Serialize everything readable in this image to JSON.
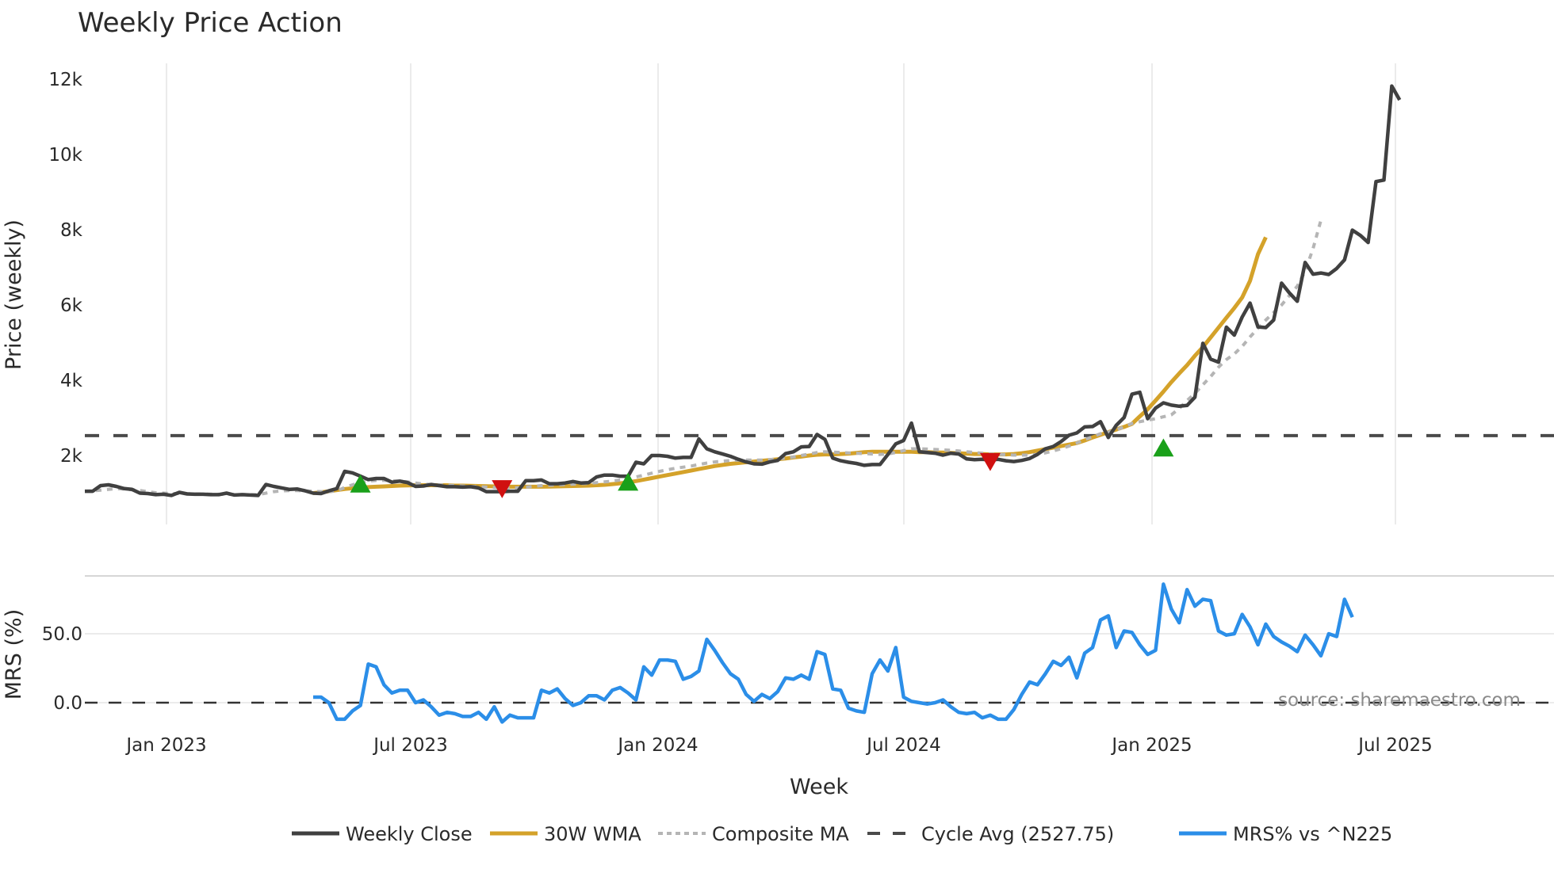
{
  "title": "Weekly Price Action",
  "source": "source: sharemaestro.com",
  "colors": {
    "weekly_close": "#404040",
    "wma30": "#D4A22A",
    "composite_ma": "#B5B5B5",
    "cycle_avg": "#4A4A4A",
    "mrs": "#2B8EE8",
    "buy_marker": "#1AA01A",
    "sell_marker": "#D01010",
    "grid": "#EBEBEB",
    "divider": "#D6D6D6"
  },
  "chart_data": {
    "type": "line",
    "title": "Weekly Price Action",
    "xlabel": "Week",
    "x_ticks": [
      "Jan 2023",
      "Jul 2023",
      "Jan 2024",
      "Jul 2024",
      "Jan 2025",
      "Jul 2025"
    ],
    "panels": [
      {
        "name": "price",
        "ylabel": "Price (weekly)",
        "y_ticks": [
          "2k",
          "4k",
          "6k",
          "8k",
          "10k",
          "12k"
        ],
        "y_tick_values": [
          2000,
          4000,
          6000,
          8000,
          10000,
          12000
        ],
        "ylim": [
          0,
          12500
        ],
        "series": [
          {
            "name": "Weekly Close",
            "start_index": 0,
            "values": [
              1050,
              1050,
              1200,
              1220,
              1180,
              1120,
              1100,
              1000,
              990,
              960,
              970,
              940,
              1020,
              980,
              970,
              970,
              960,
              960,
              1000,
              950,
              960,
              950,
              940,
              1230,
              1180,
              1140,
              1100,
              1110,
              1060,
              1000,
              990,
              1060,
              1120,
              1580,
              1540,
              1450,
              1360,
              1390,
              1390,
              1290,
              1320,
              1280,
              1180,
              1190,
              1230,
              1200,
              1170,
              1170,
              1160,
              1170,
              1140,
              1040,
              1040,
              1040,
              1050,
              1050,
              1330,
              1330,
              1350,
              1250,
              1250,
              1270,
              1310,
              1270,
              1280,
              1430,
              1480,
              1480,
              1450,
              1450,
              1820,
              1780,
              2000,
              2000,
              1980,
              1930,
              1950,
              1950,
              2440,
              2180,
              2100,
              2040,
              1980,
              1900,
              1830,
              1780,
              1770,
              1830,
              1870,
              2050,
              2100,
              2230,
              2240,
              2560,
              2430,
              1930,
              1860,
              1820,
              1790,
              1740,
              1760,
              1760,
              2030,
              2310,
              2400,
              2860,
              2100,
              2080,
              2060,
              2010,
              2060,
              2040,
              1910,
              1890,
              1900,
              1880,
              1900,
              1860,
              1840,
              1870,
              1920,
              2030,
              2180,
              2240,
              2370,
              2540,
              2600,
              2760,
              2770,
              2900,
              2480,
              2800,
              3010,
              3630,
              3680,
              2980,
              3260,
              3400,
              3340,
              3310,
              3330,
              3550,
              4980,
              4560,
              4480,
              5410,
              5200,
              5680,
              6050,
              5420,
              5400,
              5600,
              6580,
              6320,
              6100,
              7130,
              6820,
              6850,
              6810,
              6970,
              7200,
              7990,
              7850,
              7660,
              9280,
              9320,
              11820,
              11450
            ]
          },
          {
            "name": "30W WMA",
            "start_index": 29,
            "values": [
              1000,
              1020,
              1050,
              1080,
              1110,
              1130,
              1150,
              1160,
              1170,
              1180,
              1190,
              1200,
              1205,
              1210,
              1210,
              1210,
              1210,
              1210,
              1200,
              1200,
              1195,
              1190,
              1185,
              1180,
              1175,
              1170,
              1170,
              1170,
              1170,
              1170,
              1175,
              1180,
              1185,
              1190,
              1195,
              1200,
              1210,
              1220,
              1240,
              1260,
              1290,
              1320,
              1360,
              1400,
              1440,
              1480,
              1520,
              1560,
              1600,
              1640,
              1680,
              1720,
              1750,
              1780,
              1800,
              1820,
              1840,
              1860,
              1880,
              1900,
              1920,
              1950,
              1970,
              2000,
              2020,
              2030,
              2030,
              2040,
              2050,
              2070,
              2090,
              2100,
              2100,
              2100,
              2100,
              2100,
              2100,
              2090,
              2090,
              2080,
              2080,
              2070,
              2060,
              2050,
              2040,
              2040,
              2030,
              2030,
              2030,
              2040,
              2060,
              2090,
              2130,
              2170,
              2210,
              2250,
              2290,
              2330,
              2400,
              2480,
              2550,
              2620,
              2690,
              2760,
              2840,
              3040,
              3230,
              3460,
              3700,
              3950,
              4180,
              4400,
              4650,
              4880,
              5140,
              5400,
              5660,
              5920,
              6200,
              6640,
              7350,
              7800
            ]
          },
          {
            "name": "Composite MA",
            "start_index": 0,
            "values": [
              1050,
              1060,
              1080,
              1100,
              1120,
              1110,
              1090,
              1070,
              1040,
              1010,
              1000,
              990,
              990,
              985,
              980,
              980,
              975,
              970,
              970,
              965,
              960,
              960,
              960,
              1000,
              1040,
              1060,
              1070,
              1070,
              1060,
              1050,
              1040,
              1040,
              1060,
              1150,
              1220,
              1280,
              1320,
              1340,
              1340,
              1330,
              1320,
              1300,
              1270,
              1240,
              1230,
              1220,
              1210,
              1200,
              1190,
              1180,
              1170,
              1160,
              1150,
              1140,
              1140,
              1140,
              1160,
              1180,
              1200,
              1210,
              1220,
              1230,
              1240,
              1250,
              1260,
              1280,
              1300,
              1320,
              1350,
              1380,
              1430,
              1480,
              1530,
              1580,
              1620,
              1660,
              1690,
              1720,
              1760,
              1800,
              1830,
              1850,
              1870,
              1880,
              1880,
              1880,
              1880,
              1890,
              1910,
              1930,
              1960,
              2000,
              2040,
              2080,
              2100,
              2090,
              2080,
              2070,
              2060,
              2050,
              2040,
              2030,
              2040,
              2080,
              2130,
              2180,
              2180,
              2170,
              2160,
              2150,
              2140,
              2120,
              2100,
              2080,
              2060,
              2040,
              2030,
              2020,
              2010,
              2010,
              2010,
              2030,
              2070,
              2120,
              2180,
              2250,
              2330,
              2420,
              2500,
              2580,
              2620,
              2680,
              2760,
              2850,
              2900,
              2940,
              2980,
              3030,
              3080,
              3250,
              3460,
              3650,
              3880,
              4100,
              4350,
              4550,
              4700,
              4900,
              5150,
              5380,
              5600,
              5800,
              6000,
              6250,
              6500,
              6900,
              7500,
              8250
            ]
          },
          {
            "name": "Cycle Avg (2527.75)",
            "constant": 2527.75
          }
        ],
        "markers": [
          {
            "type": "buy",
            "index": 35,
            "value": 1220
          },
          {
            "type": "sell",
            "index": 53,
            "value": 1140
          },
          {
            "type": "buy",
            "index": 69,
            "value": 1270
          },
          {
            "type": "sell",
            "index": 115,
            "value": 1860
          },
          {
            "type": "buy",
            "index": 137,
            "value": 2180
          }
        ]
      },
      {
        "name": "mrs",
        "ylabel": "MRS (%)",
        "y_ticks": [
          "0.0",
          "50.0"
        ],
        "y_tick_values": [
          0,
          50
        ],
        "ylim": [
          -18,
          90
        ],
        "zero_line": true,
        "series": [
          {
            "name": "MRS% vs ^N225",
            "start_index": 29,
            "values": [
              4,
              4,
              0,
              -12,
              -12,
              -6,
              -2,
              28,
              26,
              13,
              7,
              9,
              9,
              0,
              2,
              -3,
              -9,
              -7,
              -8,
              -10,
              -10,
              -7,
              -12,
              -3,
              -14,
              -9,
              -11,
              -11,
              -11,
              9,
              7,
              10,
              3,
              -2,
              0,
              5,
              5,
              2,
              9,
              11,
              7,
              2,
              26,
              20,
              31,
              31,
              30,
              17,
              19,
              23,
              46,
              38,
              29,
              21,
              17,
              6,
              1,
              6,
              3,
              8,
              18,
              17,
              20,
              17,
              37,
              35,
              10,
              9,
              -4,
              -6,
              -7,
              21,
              31,
              23,
              40,
              4,
              1,
              0,
              -1,
              0,
              2,
              -3,
              -7,
              -8,
              -7,
              -11,
              -9,
              -12,
              -12,
              -5,
              6,
              15,
              13,
              21,
              30,
              27,
              33,
              18,
              36,
              40,
              60,
              63,
              40,
              52,
              51,
              42,
              35,
              38,
              86,
              68,
              58,
              82,
              70,
              75,
              74,
              52,
              49,
              50,
              64,
              55,
              42,
              57,
              48,
              44,
              41,
              37,
              49,
              42,
              34,
              50,
              48,
              75,
              62
            ]
          }
        ]
      }
    ],
    "legend": [
      {
        "label": "Weekly Close",
        "style": "solid",
        "color": "#404040"
      },
      {
        "label": "30W WMA",
        "style": "solid",
        "color": "#D4A22A"
      },
      {
        "label": "Composite MA",
        "style": "dotted",
        "color": "#B5B5B5"
      },
      {
        "label": "Cycle Avg (2527.75)",
        "style": "dashed",
        "color": "#4A4A4A"
      },
      {
        "label": "MRS% vs ^N225",
        "style": "solid",
        "color": "#2B8EE8"
      }
    ],
    "legend_position": "bottom",
    "grid": true
  }
}
